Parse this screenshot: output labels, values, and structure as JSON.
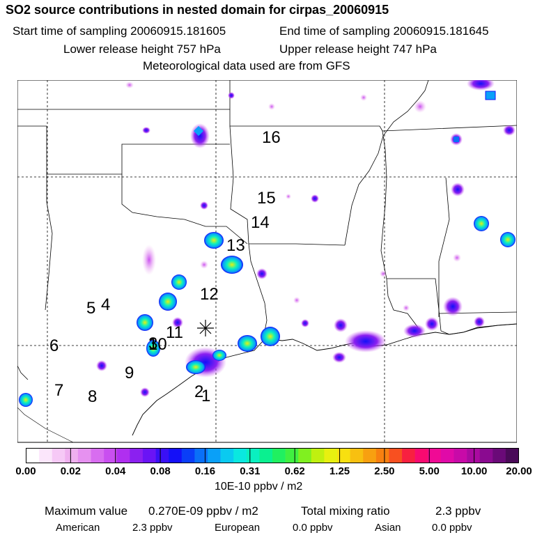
{
  "header": {
    "title": "SO2 source contributions in nested domain for cirpas_20060915",
    "start_time": "Start time of sampling 20060915.181605",
    "end_time": "End time of sampling 20060915.181645",
    "lower_release": "Lower release height  757 hPa",
    "upper_release": "Upper release height  747 hPa",
    "met_data": "Meteorological data used are from GFS"
  },
  "map": {
    "source_labels": [
      "16",
      "15",
      "14",
      "13",
      "12",
      "5",
      "4",
      "11",
      "10",
      "6",
      "9",
      "2",
      "1",
      "7",
      "8",
      "3"
    ],
    "receptor_marker": "asterisk-receptor"
  },
  "colorbar": {
    "colors": [
      "#ffffff",
      "#fbe6fb",
      "#f6c9f6",
      "#efb0ef",
      "#e691f0",
      "#d86df0",
      "#c94ff0",
      "#b02ff0",
      "#8b20f0",
      "#6a14f5",
      "#3a10f5",
      "#1410f8",
      "#0a3ef8",
      "#0a70f8",
      "#0aa0f8",
      "#0acaf0",
      "#0ae8e0",
      "#0af0c0",
      "#0af090",
      "#20f060",
      "#40f040",
      "#80f020",
      "#c0f010",
      "#e8f010",
      "#f8e010",
      "#f8c010",
      "#f8a010",
      "#f88010",
      "#f85020",
      "#f82040",
      "#f80a70",
      "#f00a95",
      "#e00aa8",
      "#c80aa8",
      "#aa0aa0",
      "#8a0a90",
      "#6a0a78",
      "#4a0a58"
    ],
    "tick_labels": [
      "0.00",
      "0.02",
      "0.04",
      "0.08",
      "0.16",
      "0.31",
      "0.62",
      "1.25",
      "2.50",
      "5.00",
      "10.00",
      "20.00"
    ],
    "unit": "10E-10 ppbv / m2"
  },
  "footer": {
    "max_value_label": "Maximum value",
    "max_value": "0.270E-09 ppbv / m2",
    "total_label": "Total mixing ratio",
    "total_value": "2.3 ppbv",
    "american_label": "American",
    "american_value": "2.3 ppbv",
    "european_label": "European",
    "european_value": "0.0 ppbv",
    "asian_label": "Asian",
    "asian_value": "0.0 ppbv"
  }
}
